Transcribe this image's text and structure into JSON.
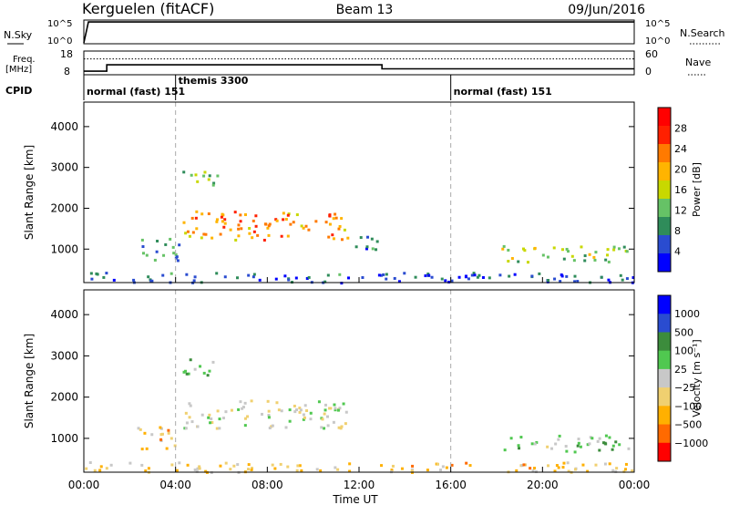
{
  "header": {
    "station": "Kerguelen (fitACF)",
    "beam": "Beam 13",
    "date": "09/Jun/2016"
  },
  "labels": {
    "nsky": "N.Sky",
    "nsearch": "N.Search",
    "freq_line1": "Freq.",
    "freq_line2": "[MHz]",
    "nave": "Nave",
    "cpid": "CPID",
    "tick_1e5_left": "10^5",
    "tick_1e0_left": "10^0",
    "tick_1e5_right": "10^5",
    "tick_1e0_right": "10^0",
    "freq_18": "18",
    "freq_8": "8",
    "nave_60": "60",
    "nave_0": "0"
  },
  "cpid_modes": [
    {
      "label": "normal (fast) 151",
      "start_hour": 0
    },
    {
      "label": "themis 3300",
      "start_hour": 4
    },
    {
      "label": "normal (fast) 151",
      "start_hour": 16
    }
  ],
  "colors": {
    "power_scale": [
      "#0000ff",
      "#2a4cd0",
      "#2f8c5a",
      "#66c266",
      "#c8d800",
      "#ffb400",
      "#ff7a00",
      "#ff2000",
      "#ff0000"
    ],
    "velocity_scale": [
      "#ff0000",
      "#ff6a00",
      "#ffb000",
      "#f0d070",
      "#c8c8c8",
      "#50c850",
      "#3c8c3c",
      "#2a4cd0",
      "#0000ff"
    ]
  },
  "chart_data": [
    {
      "type": "line",
      "name": "N.Sky / N.Search",
      "x_hours": [
        0,
        0.2,
        24
      ],
      "nsky_log": [
        0.2,
        4.6,
        4.6
      ],
      "nsearch_log": [
        0.2,
        4.6,
        4.6
      ],
      "ylim": [
        0,
        5
      ]
    },
    {
      "type": "line",
      "name": "Freq / Nave",
      "freq_steps": [
        [
          0,
          1,
          9.5
        ],
        [
          1,
          13,
          12.2
        ],
        [
          13,
          24,
          10.5
        ]
      ],
      "nave_steps": [
        [
          0,
          24,
          40
        ]
      ],
      "freq_ylim": [
        8,
        18
      ],
      "nave_ylim": [
        0,
        60
      ]
    },
    {
      "type": "heatmap",
      "name": "Power",
      "ylabel": "Slant Range [km]",
      "colorbar_label": "Power [dB]",
      "colorbar_ticks": [
        "28",
        "24",
        "20",
        "16",
        "12",
        "8",
        "4"
      ],
      "y_ticks": [
        "4000",
        "3000",
        "2000",
        "1000"
      ],
      "ylim": [
        180,
        4600
      ],
      "xlim_hours": [
        0,
        24
      ],
      "blobs": [
        {
          "t0": 4.3,
          "t1": 5.9,
          "r0": 2550,
          "r1": 2950,
          "v": 0.35
        },
        {
          "t0": 4.3,
          "t1": 11.5,
          "r0": 1250,
          "r1": 1950,
          "v": 0.7
        },
        {
          "t0": 2.3,
          "t1": 4.2,
          "r0": 750,
          "r1": 1300,
          "v": 0.25
        },
        {
          "t0": 11.5,
          "t1": 12.8,
          "r0": 1000,
          "r1": 1400,
          "v": 0.2
        },
        {
          "t0": 18.2,
          "t1": 23.8,
          "r0": 700,
          "r1": 1100,
          "v": 0.45
        },
        {
          "t0": 0,
          "t1": 24,
          "r0": 200,
          "r1": 450,
          "v": 0.15
        }
      ]
    },
    {
      "type": "heatmap",
      "name": "Velocity",
      "ylabel": "Slant Range [km]",
      "colorbar_label": "Velocity [m s⁻¹]",
      "colorbar_ticks": [
        "1000",
        "500",
        "100",
        "25",
        "−25",
        "−100",
        "−500",
        "−1000"
      ],
      "y_ticks": [
        "4000",
        "3000",
        "2000",
        "1000"
      ],
      "ylim": [
        180,
        4600
      ],
      "xlim_hours": [
        0,
        24
      ],
      "blobs": [
        {
          "t0": 4.3,
          "t1": 5.9,
          "r0": 2550,
          "r1": 2950,
          "v": 0.62
        },
        {
          "t0": 4.3,
          "t1": 11.5,
          "r0": 1250,
          "r1": 1950,
          "v": 0.5
        },
        {
          "t0": 2.3,
          "t1": 4.2,
          "r0": 750,
          "r1": 1300,
          "v": 0.3
        },
        {
          "t0": 18.2,
          "t1": 23.8,
          "r0": 700,
          "r1": 1100,
          "v": 0.6
        },
        {
          "t0": 0,
          "t1": 24,
          "r0": 200,
          "r1": 450,
          "v": 0.35
        }
      ]
    }
  ],
  "xaxis": {
    "ticks": [
      "00:00",
      "04:00",
      "08:00",
      "12:00",
      "16:00",
      "20:00",
      "00:00"
    ],
    "label": "Time UT"
  }
}
